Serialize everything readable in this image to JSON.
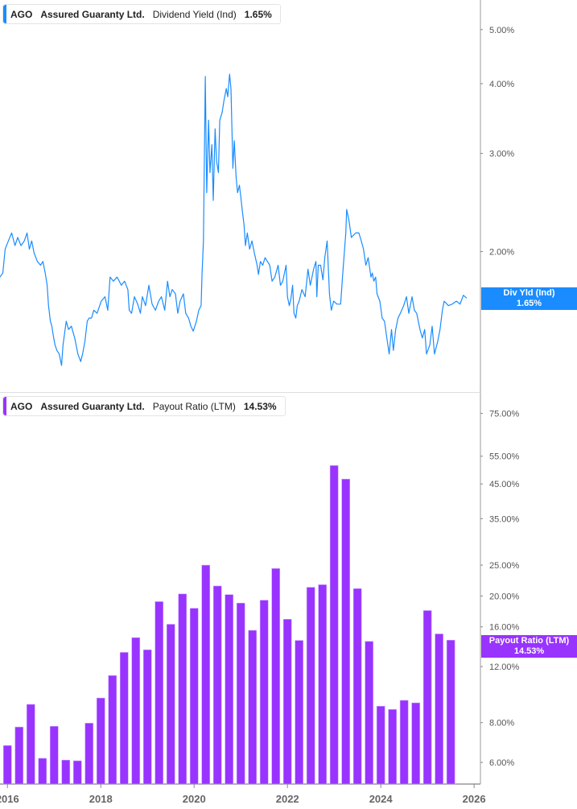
{
  "top_legend": {
    "ticker": "AGO",
    "company": "Assured Guaranty Ltd.",
    "metric": "Dividend Yield (Ind)",
    "value": "1.65%"
  },
  "bottom_legend": {
    "ticker": "AGO",
    "company": "Assured Guaranty Ltd.",
    "metric": "Payout Ratio (LTM)",
    "value": "14.53%"
  },
  "top_tag": {
    "label": "Div Yld (Ind)",
    "value": "1.65%"
  },
  "bottom_tag": {
    "label": "Payout Ratio (LTM)",
    "value": "14.53%"
  },
  "colors": {
    "yield": "#1a8cff",
    "payout": "#9933ff"
  },
  "chart_data": [
    {
      "type": "line",
      "title": "",
      "series": [
        {
          "name": "Dividend Yield (Ind)",
          "points": [
            [
              2015.84,
              1.8
            ],
            [
              2015.9,
              1.83
            ],
            [
              2015.95,
              2.02
            ],
            [
              2016.02,
              2.09
            ],
            [
              2016.09,
              2.16
            ],
            [
              2016.16,
              2.05
            ],
            [
              2016.22,
              2.12
            ],
            [
              2016.29,
              2.05
            ],
            [
              2016.36,
              2.09
            ],
            [
              2016.42,
              2.16
            ],
            [
              2016.47,
              2.02
            ],
            [
              2016.52,
              2.09
            ],
            [
              2016.57,
              1.99
            ],
            [
              2016.64,
              1.92
            ],
            [
              2016.71,
              1.89
            ],
            [
              2016.76,
              1.92
            ],
            [
              2016.81,
              1.83
            ],
            [
              2016.85,
              1.74
            ],
            [
              2016.88,
              1.6
            ],
            [
              2016.92,
              1.5
            ],
            [
              2016.95,
              1.47
            ],
            [
              2016.99,
              1.4
            ],
            [
              2017.02,
              1.36
            ],
            [
              2017.06,
              1.33
            ],
            [
              2017.11,
              1.31
            ],
            [
              2017.16,
              1.25
            ],
            [
              2017.19,
              1.36
            ],
            [
              2017.26,
              1.5
            ],
            [
              2017.31,
              1.45
            ],
            [
              2017.37,
              1.47
            ],
            [
              2017.44,
              1.4
            ],
            [
              2017.51,
              1.31
            ],
            [
              2017.57,
              1.27
            ],
            [
              2017.61,
              1.31
            ],
            [
              2017.66,
              1.38
            ],
            [
              2017.71,
              1.5
            ],
            [
              2017.75,
              1.52
            ],
            [
              2017.8,
              1.52
            ],
            [
              2017.85,
              1.57
            ],
            [
              2017.92,
              1.55
            ],
            [
              2018.01,
              1.63
            ],
            [
              2018.09,
              1.66
            ],
            [
              2018.15,
              1.57
            ],
            [
              2018.2,
              1.8
            ],
            [
              2018.27,
              1.77
            ],
            [
              2018.35,
              1.8
            ],
            [
              2018.44,
              1.74
            ],
            [
              2018.51,
              1.77
            ],
            [
              2018.58,
              1.71
            ],
            [
              2018.61,
              1.57
            ],
            [
              2018.66,
              1.55
            ],
            [
              2018.72,
              1.66
            ],
            [
              2018.79,
              1.61
            ],
            [
              2018.85,
              1.55
            ],
            [
              2018.89,
              1.66
            ],
            [
              2018.96,
              1.6
            ],
            [
              2019.03,
              1.74
            ],
            [
              2019.1,
              1.61
            ],
            [
              2019.17,
              1.57
            ],
            [
              2019.24,
              1.63
            ],
            [
              2019.3,
              1.66
            ],
            [
              2019.37,
              1.57
            ],
            [
              2019.43,
              1.77
            ],
            [
              2019.48,
              1.66
            ],
            [
              2019.53,
              1.71
            ],
            [
              2019.6,
              1.68
            ],
            [
              2019.65,
              1.55
            ],
            [
              2019.7,
              1.63
            ],
            [
              2019.77,
              1.68
            ],
            [
              2019.82,
              1.55
            ],
            [
              2019.88,
              1.52
            ],
            [
              2019.93,
              1.47
            ],
            [
              2019.98,
              1.44
            ],
            [
              2020.05,
              1.5
            ],
            [
              2020.1,
              1.57
            ],
            [
              2020.15,
              1.6
            ],
            [
              2020.17,
              1.83
            ],
            [
              2020.2,
              2.09
            ],
            [
              2020.24,
              4.12
            ],
            [
              2020.27,
              2.55
            ],
            [
              2020.31,
              3.44
            ],
            [
              2020.34,
              2.77
            ],
            [
              2020.38,
              3.11
            ],
            [
              2020.41,
              2.47
            ],
            [
              2020.45,
              3.32
            ],
            [
              2020.48,
              2.91
            ],
            [
              2020.52,
              2.77
            ],
            [
              2020.55,
              3.44
            ],
            [
              2020.6,
              3.55
            ],
            [
              2020.64,
              3.73
            ],
            [
              2020.69,
              3.92
            ],
            [
              2020.72,
              3.79
            ],
            [
              2020.76,
              4.16
            ],
            [
              2020.79,
              3.92
            ],
            [
              2020.83,
              2.82
            ],
            [
              2020.86,
              3.16
            ],
            [
              2020.9,
              2.72
            ],
            [
              2020.93,
              2.55
            ],
            [
              2020.97,
              2.63
            ],
            [
              2021.0,
              2.51
            ],
            [
              2021.03,
              2.38
            ],
            [
              2021.07,
              2.23
            ],
            [
              2021.1,
              2.05
            ],
            [
              2021.14,
              2.16
            ],
            [
              2021.19,
              2.02
            ],
            [
              2021.24,
              2.09
            ],
            [
              2021.29,
              1.99
            ],
            [
              2021.35,
              1.89
            ],
            [
              2021.38,
              1.82
            ],
            [
              2021.42,
              1.92
            ],
            [
              2021.47,
              1.89
            ],
            [
              2021.52,
              1.95
            ],
            [
              2021.57,
              1.92
            ],
            [
              2021.62,
              1.89
            ],
            [
              2021.67,
              1.77
            ],
            [
              2021.73,
              1.8
            ],
            [
              2021.8,
              1.89
            ],
            [
              2021.85,
              1.74
            ],
            [
              2021.9,
              1.77
            ],
            [
              2021.97,
              1.89
            ],
            [
              2022.0,
              1.66
            ],
            [
              2022.04,
              1.6
            ],
            [
              2022.07,
              1.64
            ],
            [
              2022.11,
              1.74
            ],
            [
              2022.14,
              1.55
            ],
            [
              2022.18,
              1.52
            ],
            [
              2022.21,
              1.6
            ],
            [
              2022.25,
              1.63
            ],
            [
              2022.31,
              1.71
            ],
            [
              2022.38,
              1.66
            ],
            [
              2022.44,
              1.86
            ],
            [
              2022.49,
              1.74
            ],
            [
              2022.56,
              1.86
            ],
            [
              2022.61,
              1.92
            ],
            [
              2022.63,
              1.66
            ],
            [
              2022.66,
              1.89
            ],
            [
              2022.71,
              1.89
            ],
            [
              2022.76,
              1.78
            ],
            [
              2022.8,
              1.95
            ],
            [
              2022.85,
              2.09
            ],
            [
              2022.9,
              1.68
            ],
            [
              2022.94,
              1.57
            ],
            [
              2022.99,
              1.63
            ],
            [
              2023.06,
              1.61
            ],
            [
              2023.14,
              1.61
            ],
            [
              2023.18,
              1.8
            ],
            [
              2023.21,
              1.95
            ],
            [
              2023.25,
              2.16
            ],
            [
              2023.27,
              2.38
            ],
            [
              2023.32,
              2.27
            ],
            [
              2023.37,
              2.12
            ],
            [
              2023.46,
              2.16
            ],
            [
              2023.53,
              2.16
            ],
            [
              2023.56,
              2.12
            ],
            [
              2023.63,
              2.02
            ],
            [
              2023.68,
              1.89
            ],
            [
              2023.73,
              1.95
            ],
            [
              2023.79,
              1.8
            ],
            [
              2023.82,
              1.83
            ],
            [
              2023.85,
              1.77
            ],
            [
              2023.89,
              1.8
            ],
            [
              2023.92,
              1.68
            ],
            [
              2023.98,
              1.63
            ],
            [
              2024.03,
              1.52
            ],
            [
              2024.08,
              1.5
            ],
            [
              2024.13,
              1.4
            ],
            [
              2024.18,
              1.31
            ],
            [
              2024.23,
              1.45
            ],
            [
              2024.27,
              1.33
            ],
            [
              2024.32,
              1.45
            ],
            [
              2024.37,
              1.52
            ],
            [
              2024.42,
              1.55
            ],
            [
              2024.49,
              1.6
            ],
            [
              2024.55,
              1.66
            ],
            [
              2024.6,
              1.55
            ],
            [
              2024.67,
              1.66
            ],
            [
              2024.72,
              1.57
            ],
            [
              2024.77,
              1.55
            ],
            [
              2024.84,
              1.45
            ],
            [
              2024.89,
              1.4
            ],
            [
              2024.94,
              1.45
            ],
            [
              2024.98,
              1.31
            ],
            [
              2025.05,
              1.36
            ],
            [
              2025.1,
              1.47
            ],
            [
              2025.15,
              1.31
            ],
            [
              2025.22,
              1.38
            ],
            [
              2025.27,
              1.45
            ],
            [
              2025.32,
              1.57
            ],
            [
              2025.36,
              1.63
            ],
            [
              2025.45,
              1.6
            ],
            [
              2025.53,
              1.61
            ],
            [
              2025.62,
              1.63
            ],
            [
              2025.7,
              1.61
            ],
            [
              2025.77,
              1.67
            ],
            [
              2025.84,
              1.65
            ]
          ]
        }
      ],
      "y_scale": "log",
      "ylim": [
        1.12,
        5.65
      ],
      "xlim": [
        2015.84,
        2026.17
      ],
      "y_ticks": [
        "2.00%",
        "3.00%",
        "4.00%",
        "5.00%"
      ],
      "y_tick_values": [
        2,
        3,
        4,
        5
      ],
      "grid": false,
      "legend": "top-left"
    },
    {
      "type": "bar",
      "title": "",
      "series": [
        {
          "name": "Payout Ratio (LTM)",
          "x": [
            2016.0,
            2016.25,
            2016.5,
            2016.75,
            2017.0,
            2017.25,
            2017.5,
            2017.75,
            2018.0,
            2018.25,
            2018.5,
            2018.75,
            2019.0,
            2019.25,
            2019.5,
            2019.75,
            2020.0,
            2020.25,
            2020.5,
            2020.75,
            2021.0,
            2021.25,
            2021.5,
            2021.75,
            2022.0,
            2022.25,
            2022.5,
            2022.75,
            2023.0,
            2023.25,
            2023.5,
            2023.75,
            2024.0,
            2024.25,
            2024.5,
            2024.75,
            2025.0,
            2025.25,
            2025.5
          ],
          "values": [
            6.78,
            7.75,
            9.13,
            6.18,
            7.79,
            6.1,
            6.07,
            7.97,
            9.56,
            11.25,
            13.3,
            14.8,
            13.55,
            19.2,
            16.3,
            20.3,
            18.3,
            25.0,
            21.5,
            20.2,
            19.0,
            15.6,
            19.4,
            24.4,
            16.9,
            14.5,
            21.3,
            21.7,
            51.4,
            46.6,
            21.1,
            14.4,
            9.01,
            8.8,
            9.4,
            9.23,
            18.0,
            15.2,
            14.53
          ]
        }
      ],
      "y_scale": "log",
      "ylim": [
        5.13,
        87.5
      ],
      "xlim": [
        2015.84,
        2026.17
      ],
      "y_ticks": [
        "6.00%",
        "8.00%",
        "12.00%",
        "16.00%",
        "20.00%",
        "25.00%",
        "35.00%",
        "45.00%",
        "55.00%",
        "75.00%"
      ],
      "y_tick_values": [
        6,
        8,
        12,
        16,
        20,
        25,
        35,
        45,
        55,
        75
      ],
      "x_ticks": [
        "2016",
        "2018",
        "2020",
        "2022",
        "2024",
        "2026"
      ],
      "x_tick_values": [
        2016,
        2018,
        2020,
        2022,
        2024,
        2026
      ],
      "grid": false,
      "legend": "top-left"
    }
  ]
}
